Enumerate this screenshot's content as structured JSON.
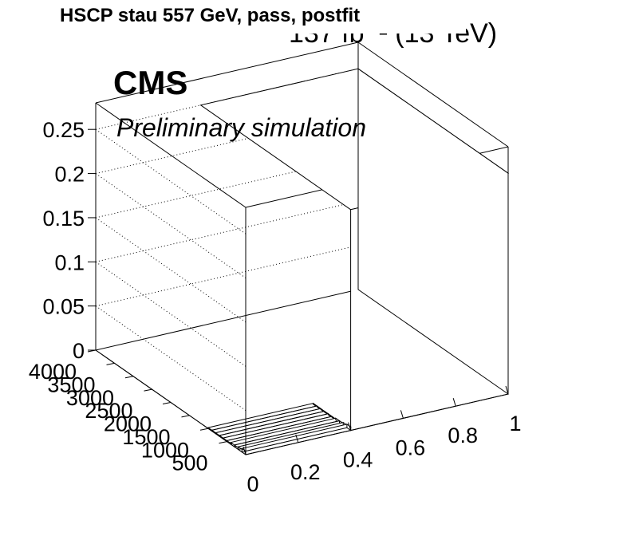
{
  "header": {
    "title": "HSCP stau 557 GeV, pass, postfit",
    "lumi": "137 fb⁻¹ (13 TeV)",
    "experiment": "CMS",
    "subtitle": "Preliminary simulation"
  },
  "chart_data": {
    "type": "lego3d",
    "title": "HSCP stau 557 GeV, pass, postfit",
    "x_axis": {
      "range": [
        0,
        1
      ],
      "tick_labels": [
        "0",
        "0.2",
        "0.4",
        "0.6",
        "0.8",
        "1"
      ],
      "tick_values": [
        0,
        0.2,
        0.4,
        0.6,
        0.8,
        1
      ]
    },
    "y_axis": {
      "range": [
        0,
        4000
      ],
      "tick_labels": [
        "500",
        "1000",
        "1500",
        "2000",
        "2500",
        "3000",
        "3500",
        "4000"
      ],
      "tick_values": [
        500,
        1000,
        1500,
        2000,
        2500,
        3000,
        3500,
        4000
      ]
    },
    "z_axis": {
      "range": [
        0,
        0.28
      ],
      "tick_labels": [
        "0",
        "0.05",
        "0.1",
        "0.15",
        "0.2",
        "0.25"
      ],
      "tick_values": [
        0,
        0.05,
        0.1,
        0.15,
        0.2,
        0.25
      ]
    },
    "bins_x": [
      0.4,
      1.0
    ],
    "bins_y": [
      0,
      100,
      200,
      300,
      400,
      500,
      600,
      700,
      800,
      900,
      1000,
      4000
    ],
    "cells": [
      {
        "x": [
          0,
          0.4
        ],
        "y": [
          0,
          100
        ],
        "z": 0.004
      },
      {
        "x": [
          0,
          0.4
        ],
        "y": [
          100,
          200
        ],
        "z": 0.003
      },
      {
        "x": [
          0,
          0.4
        ],
        "y": [
          200,
          300
        ],
        "z": 0.002
      },
      {
        "x": [
          0,
          0.4
        ],
        "y": [
          300,
          400
        ],
        "z": 0.002
      },
      {
        "x": [
          0,
          0.4
        ],
        "y": [
          400,
          500
        ],
        "z": 0.001
      },
      {
        "x": [
          0,
          0.4
        ],
        "y": [
          500,
          600
        ],
        "z": 0.001
      },
      {
        "x": [
          0,
          0.4
        ],
        "y": [
          600,
          700
        ],
        "z": 0.001
      },
      {
        "x": [
          0,
          0.4
        ],
        "y": [
          700,
          800
        ],
        "z": 0.001
      },
      {
        "x": [
          0,
          0.4
        ],
        "y": [
          800,
          900
        ],
        "z": 0.001
      },
      {
        "x": [
          0,
          0.4
        ],
        "y": [
          900,
          1000
        ],
        "z": 0.001
      },
      {
        "x": [
          0.4,
          1.0
        ],
        "y": [
          0,
          4000
        ],
        "z": 0.25
      }
    ],
    "grid": true
  }
}
